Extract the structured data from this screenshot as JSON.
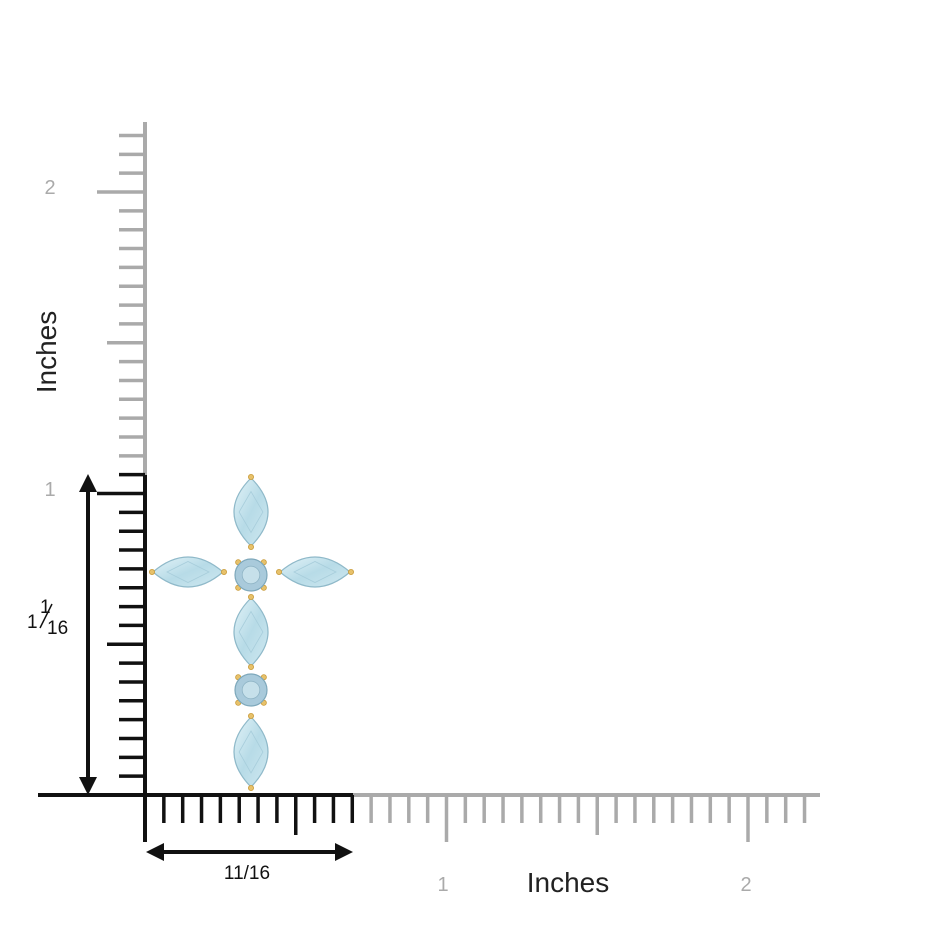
{
  "vertical_ruler": {
    "label": "Inches",
    "tick_labels": [
      "1",
      "2"
    ]
  },
  "horizontal_ruler": {
    "label": "Inches",
    "tick_labels": [
      "1",
      "2"
    ]
  },
  "height_dimension": {
    "whole": "1",
    "numerator": "1",
    "denominator": "16"
  },
  "width_dimension": "11/16"
}
